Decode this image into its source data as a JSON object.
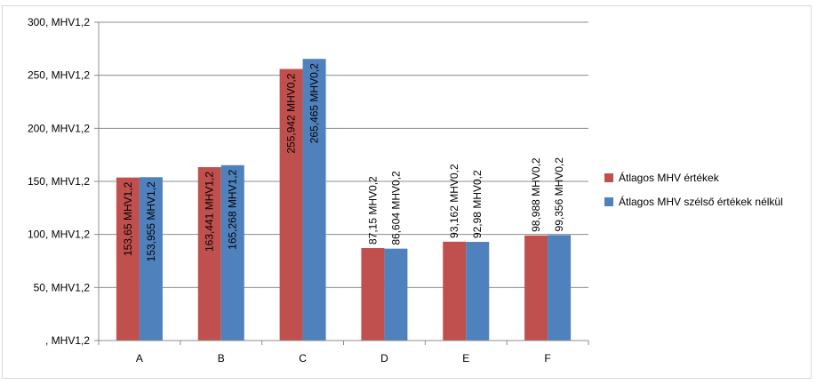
{
  "chart_data": {
    "type": "bar",
    "title": "",
    "xlabel": "",
    "ylabel": "",
    "ylim": [
      0,
      300
    ],
    "yticks": [
      0,
      50,
      100,
      150,
      200,
      250,
      300
    ],
    "ytick_labels": [
      ", MHV1,2",
      "50, MHV1,2",
      "100, MHV1,2",
      "150, MHV1,2",
      "200, MHV1,2",
      "250, MHV1,2",
      "300, MHV1,2"
    ],
    "grid": true,
    "legend_position": "right",
    "categories": [
      "A",
      "B",
      "C",
      "D",
      "E",
      "F"
    ],
    "series": [
      {
        "name": "Átlagos MHV értékek",
        "color": "#c0504d",
        "values": [
          153.65,
          163.441,
          255.942,
          87.15,
          93.162,
          98.988
        ],
        "labels": [
          "153,65 MHV1,2",
          "163,441 MHV1,2",
          "255,942 MHV0,2",
          "87,15 MHV0,2",
          "93,162 MHV0,2",
          "98,988 MHV0,2"
        ]
      },
      {
        "name": "Átlagos MHV szélső értékek nélkül",
        "color": "#4f81bd",
        "values": [
          153.955,
          165.268,
          265.465,
          86.604,
          92.98,
          99.356
        ],
        "labels": [
          "153,955 MHV1,2",
          "165,268 MHV1,2",
          "265,465 MHV0,2",
          "86,604 MHV0,2",
          "92,98 MHV0,2",
          "99,356 MHV0,2"
        ]
      }
    ]
  }
}
